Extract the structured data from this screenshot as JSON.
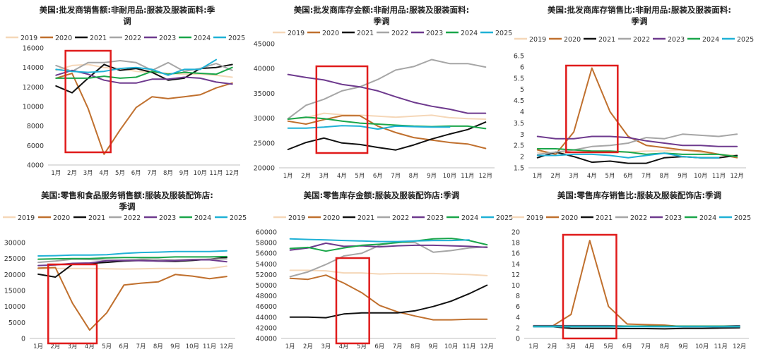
{
  "legend_colors": {
    "2019": "#f5d7b8",
    "2020": "#c0702e",
    "2021": "#111111",
    "2022": "#a6a6a6",
    "2023": "#6e3a8e",
    "2024": "#1aa64a",
    "2025": "#1fb1d6"
  },
  "highlight_color": "#e01b1b",
  "chart_data": [
    {
      "type": "line",
      "title": "美国:批发商销售额:非耐用品:服装及服装面料:季调",
      "title_lines": [
        "美国:批发商销售额:非耐用品:服装及服装面料:季",
        "调"
      ],
      "categories": [
        "1月",
        "2月",
        "3月",
        "4月",
        "5月",
        "6月",
        "7月",
        "8月",
        "9月",
        "10月",
        "11月",
        "12月"
      ],
      "ylim": [
        4000,
        16000
      ],
      "yticks": [
        "4000",
        "6000",
        "8000",
        "10000",
        "12000",
        "14000",
        "16000"
      ],
      "highlight": {
        "from": 2,
        "to": 4
      },
      "series": [
        {
          "name": "2019",
          "values": [
            13700,
            14200,
            14300,
            14000,
            13900,
            13600,
            13500,
            13400,
            13300,
            13300,
            13200,
            13000
          ]
        },
        {
          "name": "2020",
          "values": [
            12900,
            13400,
            9800,
            5100,
            7600,
            9900,
            11000,
            10800,
            11000,
            11200,
            11900,
            12400
          ]
        },
        {
          "name": "2021",
          "values": [
            12100,
            11400,
            12900,
            14300,
            13700,
            13900,
            13500,
            12700,
            12900,
            13900,
            14000,
            14300
          ]
        },
        {
          "name": "2022",
          "values": [
            14200,
            13600,
            14500,
            14500,
            14700,
            14500,
            13700,
            14500,
            13600,
            13900,
            14400,
            13700
          ]
        },
        {
          "name": "2023",
          "values": [
            13200,
            13700,
            13300,
            12700,
            12400,
            12400,
            12800,
            12800,
            13000,
            12900,
            12500,
            12300
          ]
        },
        {
          "name": "2024",
          "values": [
            12900,
            12900,
            12900,
            13100,
            12900,
            13000,
            13600,
            13300,
            13500,
            13400,
            13300,
            14000
          ]
        },
        {
          "name": "2025",
          "values": [
            13800,
            13600,
            13500,
            13600,
            13900,
            14000,
            13800,
            13200,
            13800,
            13800,
            14800,
            null
          ]
        }
      ]
    },
    {
      "type": "line",
      "title": "美国:批发商库存金额:非耐用品:服装及服装面料:季调",
      "title_lines": [
        "美国:批发商库存金额:非耐用品:服装及服装面料:",
        "季调"
      ],
      "categories": [
        "1月",
        "2月",
        "3月",
        "4月",
        "5月",
        "6月",
        "7月",
        "8月",
        "9月",
        "10月",
        "11月",
        "12月"
      ],
      "ylim": [
        20000,
        45000
      ],
      "yticks": [
        "20000",
        "25000",
        "30000",
        "35000",
        "40000",
        "45000"
      ],
      "highlight": {
        "from": 3,
        "to": 5
      },
      "series": [
        {
          "name": "2019",
          "values": [
            29800,
            30100,
            31000,
            30700,
            30600,
            30400,
            30200,
            30400,
            30600,
            30100,
            29900,
            29800
          ]
        },
        {
          "name": "2020",
          "values": [
            29400,
            28800,
            29700,
            30500,
            30500,
            28400,
            27100,
            26100,
            25600,
            25100,
            24800,
            23900
          ]
        },
        {
          "name": "2021",
          "values": [
            23700,
            25100,
            26000,
            25000,
            24700,
            24100,
            23600,
            24600,
            25800,
            26800,
            27700,
            29200
          ]
        },
        {
          "name": "2022",
          "values": [
            29900,
            32600,
            33800,
            35500,
            36300,
            37800,
            39700,
            40400,
            41800,
            41000,
            41000,
            40300
          ]
        },
        {
          "name": "2023",
          "values": [
            38800,
            38200,
            37700,
            36800,
            36300,
            35500,
            34300,
            33200,
            32400,
            31800,
            31000,
            31000
          ]
        },
        {
          "name": "2024",
          "values": [
            29800,
            30200,
            29900,
            29400,
            29000,
            28800,
            28600,
            28400,
            28300,
            28400,
            28400,
            27900
          ]
        },
        {
          "name": "2025",
          "values": [
            28000,
            28000,
            28200,
            28500,
            28400,
            27800,
            28400,
            28300,
            28200,
            28200,
            null,
            null
          ]
        }
      ]
    },
    {
      "type": "line",
      "title": "美国:批发商库存销售比:非耐用品:服装及服装面料:季调",
      "title_lines": [
        "美国:批发商库存销售比:非耐用品:服装及服装面料:",
        "季调"
      ],
      "categories": [
        "1月",
        "2月",
        "3月",
        "4月",
        "5月",
        "6月",
        "7月",
        "8月",
        "9月",
        "10月",
        "11月",
        "12月"
      ],
      "ylim": [
        1.5,
        6.5
      ],
      "yticks": [
        "1.5",
        "2",
        "2.5",
        "3",
        "3.5",
        "4",
        "4.5",
        "5",
        "5.5",
        "6",
        "6.5"
      ],
      "highlight": {
        "from": 3,
        "to": 5
      },
      "series": [
        {
          "name": "2019",
          "values": [
            2.2,
            2.15,
            2.2,
            2.2,
            2.2,
            2.2,
            2.25,
            2.25,
            2.3,
            2.2,
            2.1,
            2.05
          ]
        },
        {
          "name": "2020",
          "values": [
            2.3,
            2.1,
            3.1,
            5.95,
            4.0,
            2.9,
            2.5,
            2.4,
            2.3,
            2.25,
            2.1,
            1.95
          ]
        },
        {
          "name": "2021",
          "values": [
            1.95,
            2.2,
            2.0,
            1.75,
            1.8,
            1.7,
            1.7,
            1.95,
            2.0,
            1.95,
            1.95,
            2.05
          ]
        },
        {
          "name": "2022",
          "values": [
            2.1,
            2.2,
            2.3,
            2.45,
            2.5,
            2.6,
            2.85,
            2.8,
            3.0,
            2.95,
            2.9,
            3.0
          ]
        },
        {
          "name": "2023",
          "values": [
            2.9,
            2.8,
            2.8,
            2.9,
            2.9,
            2.85,
            2.7,
            2.6,
            2.5,
            2.5,
            2.45,
            2.45
          ]
        },
        {
          "name": "2024",
          "values": [
            2.35,
            2.35,
            2.3,
            2.25,
            2.25,
            2.2,
            2.1,
            2.15,
            2.1,
            2.1,
            2.1,
            2.0
          ]
        },
        {
          "name": "2025",
          "values": [
            2.05,
            2.05,
            2.1,
            2.1,
            2.05,
            1.95,
            2.05,
            2.15,
            2.0,
            1.95,
            1.95,
            null
          ]
        }
      ]
    },
    {
      "type": "line",
      "title": "美国:零售和食品服务销售额:服装及服装配饰店:季调",
      "title_lines": [
        "美国:零售和食品服务销售额:服装及服装配饰店:",
        "季调"
      ],
      "categories": [
        "1月",
        "2月",
        "3月",
        "4月",
        "5月",
        "6月",
        "7月",
        "8月",
        "9月",
        "10月",
        "11月",
        "12月"
      ],
      "ylim": [
        0,
        30000
      ],
      "yticks": [
        "0",
        "5000",
        "10000",
        "15000",
        "20000",
        "25000",
        "30000"
      ],
      "highlight": {
        "from": 2,
        "to": 4
      },
      "series": [
        {
          "name": "2019",
          "values": [
            21800,
            21900,
            21900,
            21900,
            21800,
            21700,
            21800,
            21900,
            21900,
            21900,
            21900,
            22600
          ]
        },
        {
          "name": "2020",
          "values": [
            22000,
            22200,
            11000,
            2600,
            8000,
            16700,
            17300,
            17700,
            20000,
            19500,
            18700,
            19400
          ]
        },
        {
          "name": "2021",
          "values": [
            20100,
            19200,
            23200,
            23500,
            23800,
            24200,
            24400,
            24200,
            24100,
            24400,
            24800,
            25300
          ]
        },
        {
          "name": "2022",
          "values": [
            23800,
            24200,
            24800,
            24700,
            24500,
            24500,
            24800,
            24800,
            24600,
            24700,
            24800,
            24900
          ]
        },
        {
          "name": "2023",
          "values": [
            22800,
            23000,
            23500,
            23600,
            24300,
            24400,
            24300,
            24200,
            24300,
            24600,
            24600,
            24000
          ]
        },
        {
          "name": "2024",
          "values": [
            24800,
            24900,
            25000,
            25000,
            25200,
            25300,
            25300,
            25300,
            25500,
            25500,
            25500,
            25600
          ]
        },
        {
          "name": "2025",
          "values": [
            25800,
            25900,
            26100,
            26100,
            26200,
            26600,
            26900,
            27000,
            27200,
            27200,
            27200,
            27400
          ]
        }
      ]
    },
    {
      "type": "line",
      "title": "美国:零售库存金额:服装及服装配饰店:季调",
      "title_lines": [
        "美国:零售库存金额:服装及服装配饰店:季调"
      ],
      "categories": [
        "1月",
        "2月",
        "3月",
        "4月",
        "5月",
        "6月",
        "7月",
        "8月",
        "9月",
        "10月",
        "11月",
        "12月"
      ],
      "ylim": [
        40000,
        60000
      ],
      "yticks": [
        "40000",
        "42000",
        "44000",
        "46000",
        "48000",
        "50000",
        "52000",
        "54000",
        "56000",
        "58000",
        "60000"
      ],
      "highlight": {
        "from": 4,
        "to": 5
      },
      "series": [
        {
          "name": "2019",
          "values": [
            52800,
            52800,
            52700,
            52300,
            52300,
            52100,
            52200,
            52200,
            52200,
            52100,
            52000,
            51800
          ]
        },
        {
          "name": "2020",
          "values": [
            51300,
            51100,
            51900,
            50400,
            48600,
            46200,
            45000,
            44200,
            43500,
            43500,
            43600,
            43600
          ]
        },
        {
          "name": "2021",
          "values": [
            44000,
            44000,
            43900,
            44600,
            44800,
            44800,
            44800,
            45200,
            46000,
            47000,
            48400,
            50000
          ]
        },
        {
          "name": "2022",
          "values": [
            51600,
            52500,
            53900,
            55500,
            56000,
            57500,
            58100,
            58000,
            56200,
            56500,
            57000,
            57200
          ]
        },
        {
          "name": "2023",
          "values": [
            56600,
            57000,
            57900,
            57300,
            57400,
            57200,
            57400,
            57500,
            57500,
            57400,
            57300,
            57100
          ]
        },
        {
          "name": "2024",
          "values": [
            56900,
            57100,
            56400,
            57000,
            57500,
            57700,
            58000,
            58300,
            58700,
            58800,
            58400,
            57600
          ]
        },
        {
          "name": "2025",
          "values": [
            58700,
            58600,
            58500,
            58400,
            58300,
            58200,
            58200,
            58300,
            58400,
            58400,
            58500,
            null
          ]
        }
      ]
    },
    {
      "type": "line",
      "title": "美国:零售库存销售比:服装及服装配饰店:季调",
      "title_lines": [
        "美国:零售库存销售比:服装及服装配饰店:季调"
      ],
      "categories": [
        "1月",
        "2月",
        "3月",
        "4月",
        "5月",
        "6月",
        "7月",
        "8月",
        "9月",
        "10月",
        "11月",
        "12月"
      ],
      "ylim": [
        0,
        20
      ],
      "yticks": [
        "0",
        "2",
        "4",
        "6",
        "8",
        "10",
        "12",
        "14",
        "16",
        "18",
        "20"
      ],
      "highlight": {
        "from": 3,
        "to": 5
      },
      "series": [
        {
          "name": "2019",
          "values": [
            2.3,
            2.3,
            2.3,
            2.3,
            2.3,
            2.3,
            2.3,
            2.3,
            2.3,
            2.3,
            2.3,
            2.3
          ]
        },
        {
          "name": "2020",
          "values": [
            2.3,
            2.3,
            4.5,
            18.4,
            6.0,
            2.7,
            2.6,
            2.5,
            2.2,
            2.2,
            2.3,
            2.3
          ]
        },
        {
          "name": "2021",
          "values": [
            2.2,
            2.2,
            1.9,
            1.9,
            1.9,
            1.85,
            1.85,
            1.8,
            1.9,
            1.9,
            1.95,
            2.0
          ]
        },
        {
          "name": "2022",
          "values": [
            2.2,
            2.2,
            2.2,
            2.2,
            2.2,
            2.25,
            2.3,
            2.25,
            2.2,
            2.2,
            2.2,
            2.2
          ]
        },
        {
          "name": "2023",
          "values": [
            2.4,
            2.4,
            2.4,
            2.4,
            2.4,
            2.3,
            2.3,
            2.3,
            2.3,
            2.3,
            2.3,
            2.4
          ]
        },
        {
          "name": "2024",
          "values": [
            2.3,
            2.3,
            2.3,
            2.3,
            2.3,
            2.3,
            2.3,
            2.3,
            2.3,
            2.3,
            2.3,
            2.3
          ]
        },
        {
          "name": "2025",
          "values": [
            2.2,
            2.2,
            2.2,
            2.2,
            2.2,
            2.2,
            2.2,
            2.2,
            2.2,
            2.2,
            2.2,
            2.2
          ]
        }
      ]
    }
  ]
}
